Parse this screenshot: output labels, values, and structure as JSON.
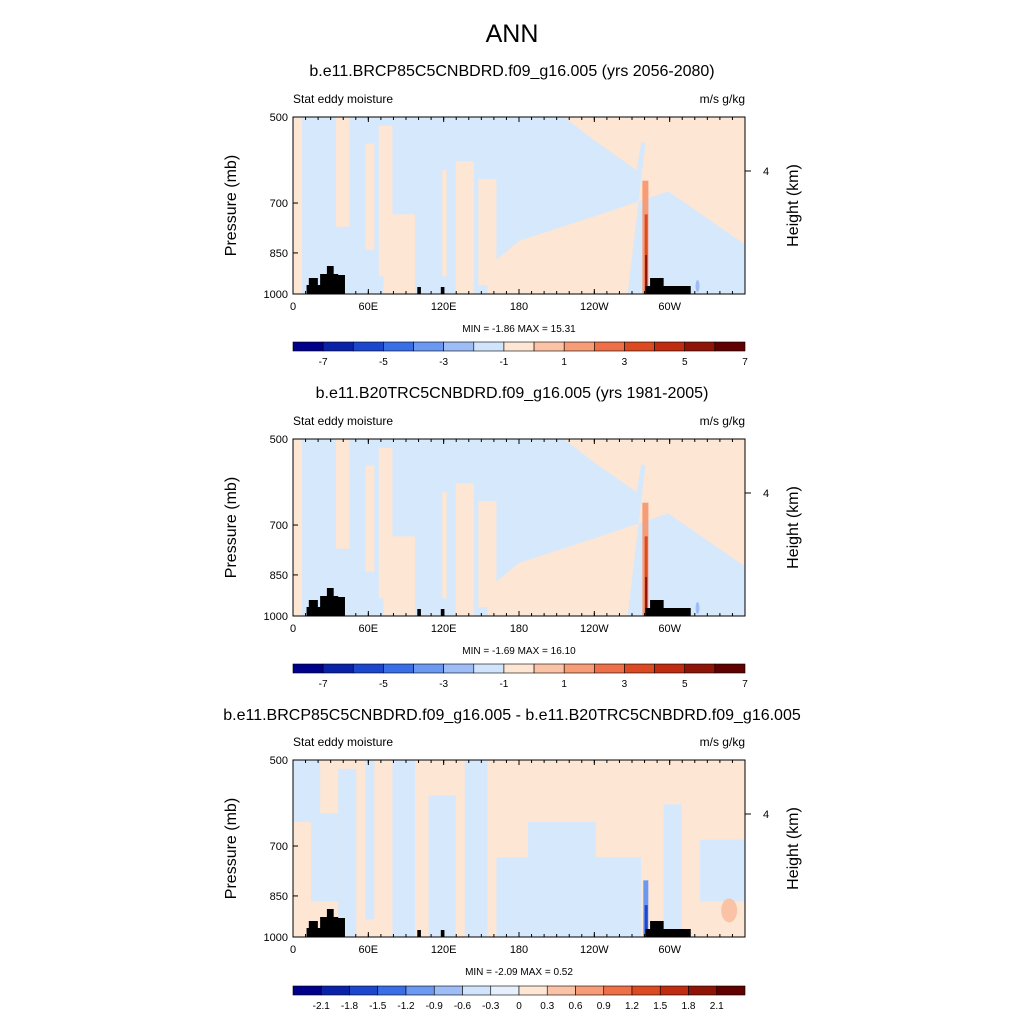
{
  "main_title": "ANN",
  "chart_data": [
    {
      "type": "heatmap",
      "title": "b.e11.BRCP85C5CNBDRD.f09_g16.005 (yrs 2056-2080)",
      "left_label": "Stat eddy moisture",
      "right_label": "m/s g/kg",
      "ylabel": "Pressure (mb)",
      "ylabel_right": "Height (km)",
      "y_ticks": [
        "500",
        "700",
        "850",
        "1000"
      ],
      "y_right_ticks": [
        "4"
      ],
      "x_ticks": [
        "0",
        "60E",
        "120E",
        "180",
        "120W",
        "60W"
      ],
      "stats": "MIN =  -1.86  MAX =  15.31",
      "colorbar_labels": [
        "-7",
        "-5",
        "-3",
        "-1",
        "1",
        "3",
        "5",
        "7"
      ],
      "colorbar_colors": [
        "#00008a",
        "#0a22a8",
        "#1c46cc",
        "#3a6ee6",
        "#6b98f0",
        "#9ebdf6",
        "#d1e4fb",
        "#fde6d4",
        "#fbc3a5",
        "#f69c76",
        "#ee7048",
        "#dc4a22",
        "#c02c10",
        "#8e1408",
        "#600000"
      ],
      "values_range": [
        -1.86,
        15.31
      ]
    },
    {
      "type": "heatmap",
      "title": "b.e11.B20TRC5CNBDRD.f09_g16.005 (yrs 1981-2005)",
      "left_label": "Stat eddy moisture",
      "right_label": "m/s g/kg",
      "ylabel": "Pressure (mb)",
      "ylabel_right": "Height (km)",
      "y_ticks": [
        "500",
        "700",
        "850",
        "1000"
      ],
      "y_right_ticks": [
        "4"
      ],
      "x_ticks": [
        "0",
        "60E",
        "120E",
        "180",
        "120W",
        "60W"
      ],
      "stats": "MIN =  -1.69  MAX =  16.10",
      "colorbar_labels": [
        "-7",
        "-5",
        "-3",
        "-1",
        "1",
        "3",
        "5",
        "7"
      ],
      "colorbar_colors": [
        "#00008a",
        "#0a22a8",
        "#1c46cc",
        "#3a6ee6",
        "#6b98f0",
        "#9ebdf6",
        "#d1e4fb",
        "#fde6d4",
        "#fbc3a5",
        "#f69c76",
        "#ee7048",
        "#dc4a22",
        "#c02c10",
        "#8e1408",
        "#600000"
      ],
      "values_range": [
        -1.69,
        16.1
      ]
    },
    {
      "type": "heatmap",
      "title": "b.e11.BRCP85C5CNBDRD.f09_g16.005 - b.e11.B20TRC5CNBDRD.f09_g16.005",
      "left_label": "Stat eddy moisture",
      "right_label": "m/s g/kg",
      "ylabel": "Pressure (mb)",
      "ylabel_right": "Height (km)",
      "y_ticks": [
        "500",
        "700",
        "850",
        "1000"
      ],
      "y_right_ticks": [
        "4"
      ],
      "x_ticks": [
        "0",
        "60E",
        "120E",
        "180",
        "120W",
        "60W"
      ],
      "stats": "MIN =  -2.09  MAX =   0.52",
      "colorbar_labels": [
        "-2.1",
        "-1.8",
        "-1.5",
        "-1.2",
        "-0.9",
        "-0.6",
        "-0.3",
        "0",
        "0.3",
        "0.6",
        "0.9",
        "1.2",
        "1.5",
        "1.8",
        "2.1"
      ],
      "colorbar_colors": [
        "#00008a",
        "#0a22a8",
        "#1c46cc",
        "#3a6ee6",
        "#6b98f0",
        "#9ebdf6",
        "#d1e4fb",
        "#e6f0fd",
        "#fde6d4",
        "#fbc3a5",
        "#f69c76",
        "#ee7048",
        "#dc4a22",
        "#c02c10",
        "#8e1408",
        "#600000"
      ],
      "values_range": [
        -2.09,
        0.52
      ]
    }
  ]
}
